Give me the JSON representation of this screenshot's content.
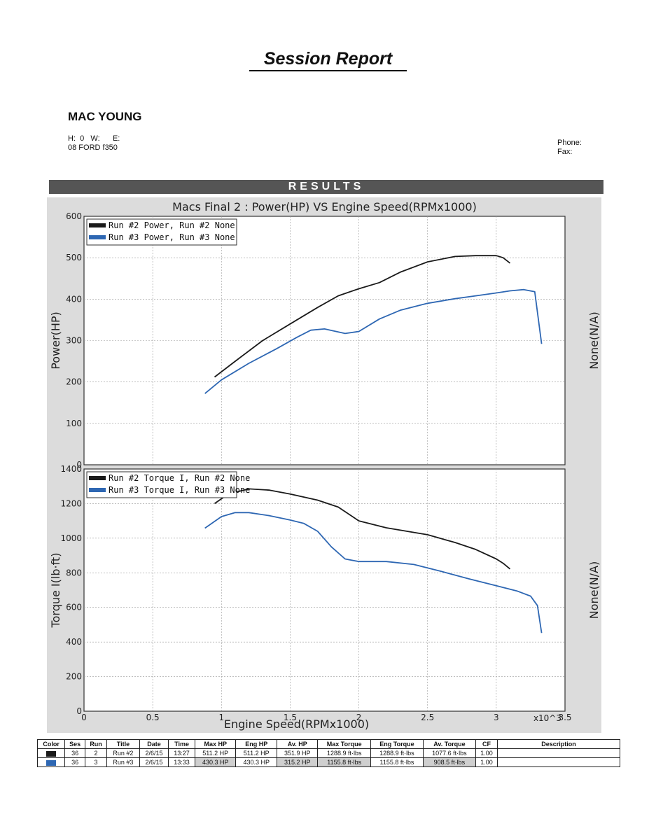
{
  "header": {
    "title": "Session Report",
    "name": "MAC YOUNG",
    "hwe_line": "H:  0   W:      E:",
    "vehicle": "08 FORD f350",
    "phone_label": "Phone:",
    "fax_label": "Fax:"
  },
  "results_label": "RESULTS",
  "chart_data": [
    {
      "type": "line",
      "title": "Macs Final 2 : Power(HP) VS Engine Speed(RPMx1000)",
      "ylabel": "Power(HP)",
      "y2label": "None(N/A)",
      "xlim": [
        0,
        3.5
      ],
      "ylim": [
        0,
        600
      ],
      "yticks": [
        0,
        100,
        200,
        300,
        400,
        500,
        600
      ],
      "grid": true,
      "legend": "top-left",
      "series": [
        {
          "name": "Run #2 Power, Run #2 None",
          "color": "#1a1a1a",
          "x": [
            0.95,
            1.1,
            1.3,
            1.5,
            1.7,
            1.85,
            2.0,
            2.15,
            2.3,
            2.5,
            2.7,
            2.85,
            3.0,
            3.05,
            3.1
          ],
          "y": [
            212,
            250,
            300,
            340,
            380,
            408,
            425,
            440,
            465,
            490,
            503,
            505,
            505,
            500,
            487
          ]
        },
        {
          "name": "Run #3 Power, Run #3 None",
          "color": "#2e67b3",
          "x": [
            0.88,
            1.0,
            1.2,
            1.4,
            1.55,
            1.65,
            1.75,
            1.9,
            2.0,
            2.15,
            2.3,
            2.5,
            2.7,
            2.85,
            3.0,
            3.1,
            3.2,
            3.28,
            3.33
          ],
          "y": [
            172,
            205,
            245,
            280,
            308,
            325,
            328,
            317,
            322,
            352,
            373,
            390,
            401,
            408,
            415,
            420,
            423,
            418,
            292
          ]
        }
      ]
    },
    {
      "type": "line",
      "xlabel": "Engine Speed(RPMx1000)",
      "ylabel": "Torque I(lb·ft)",
      "y2label": "None(N/A)",
      "x_multiplier": "x10^3",
      "xlim": [
        0,
        3.5
      ],
      "ylim": [
        0,
        1400
      ],
      "xticks": [
        0,
        0.5,
        1,
        1.5,
        2,
        2.5,
        3,
        3.5
      ],
      "yticks": [
        0,
        200,
        400,
        600,
        800,
        1000,
        1200,
        1400
      ],
      "grid": true,
      "legend": "top-left",
      "series": [
        {
          "name": "Run #2 Torque I, Run #2 None",
          "color": "#1a1a1a",
          "x": [
            0.95,
            1.05,
            1.2,
            1.35,
            1.5,
            1.7,
            1.85,
            2.0,
            2.2,
            2.5,
            2.7,
            2.85,
            3.0,
            3.05,
            3.1
          ],
          "y": [
            1200,
            1255,
            1285,
            1278,
            1255,
            1220,
            1180,
            1100,
            1060,
            1020,
            975,
            935,
            880,
            855,
            822
          ]
        },
        {
          "name": "Run #3 Torque I, Run #3 None",
          "color": "#2e67b3",
          "x": [
            0.88,
            1.0,
            1.1,
            1.2,
            1.35,
            1.5,
            1.6,
            1.7,
            1.8,
            1.9,
            2.0,
            2.2,
            2.4,
            2.6,
            2.8,
            3.0,
            3.15,
            3.25,
            3.3,
            3.33
          ],
          "y": [
            1058,
            1125,
            1148,
            1148,
            1130,
            1105,
            1085,
            1040,
            950,
            880,
            865,
            865,
            848,
            808,
            765,
            725,
            695,
            665,
            610,
            452
          ]
        }
      ]
    }
  ],
  "table": {
    "headers": [
      "Color",
      "Ses",
      "Run",
      "Title",
      "Date",
      "Time",
      "Max HP",
      "Eng HP",
      "Av. HP",
      "Max Torque",
      "Eng Torque",
      "Av. Torque",
      "CF",
      "Description"
    ],
    "rows": [
      {
        "color": "#1a1a1a",
        "ses": "36",
        "run": "2",
        "title": "Run #2",
        "date": "2/6/15",
        "time": "13:27",
        "max_hp": "511.2 HP",
        "eng_hp": "511.2 HP",
        "av_hp": "351.9 HP",
        "max_torque": "1288.9 ft·lbs",
        "eng_torque": "1288.9 ft·lbs",
        "av_torque": "1077.6 ft·lbs",
        "cf": "1.00",
        "description": ""
      },
      {
        "color": "#2e67b3",
        "ses": "36",
        "run": "3",
        "title": "Run #3",
        "date": "2/6/15",
        "time": "13:33",
        "max_hp": "430.3 HP",
        "eng_hp": "430.3 HP",
        "av_hp": "315.2 HP",
        "max_torque": "1155.8 ft·lbs",
        "eng_torque": "1155.8 ft·lbs",
        "av_torque": "908.5 ft·lbs",
        "cf": "1.00",
        "description": ""
      }
    ]
  }
}
